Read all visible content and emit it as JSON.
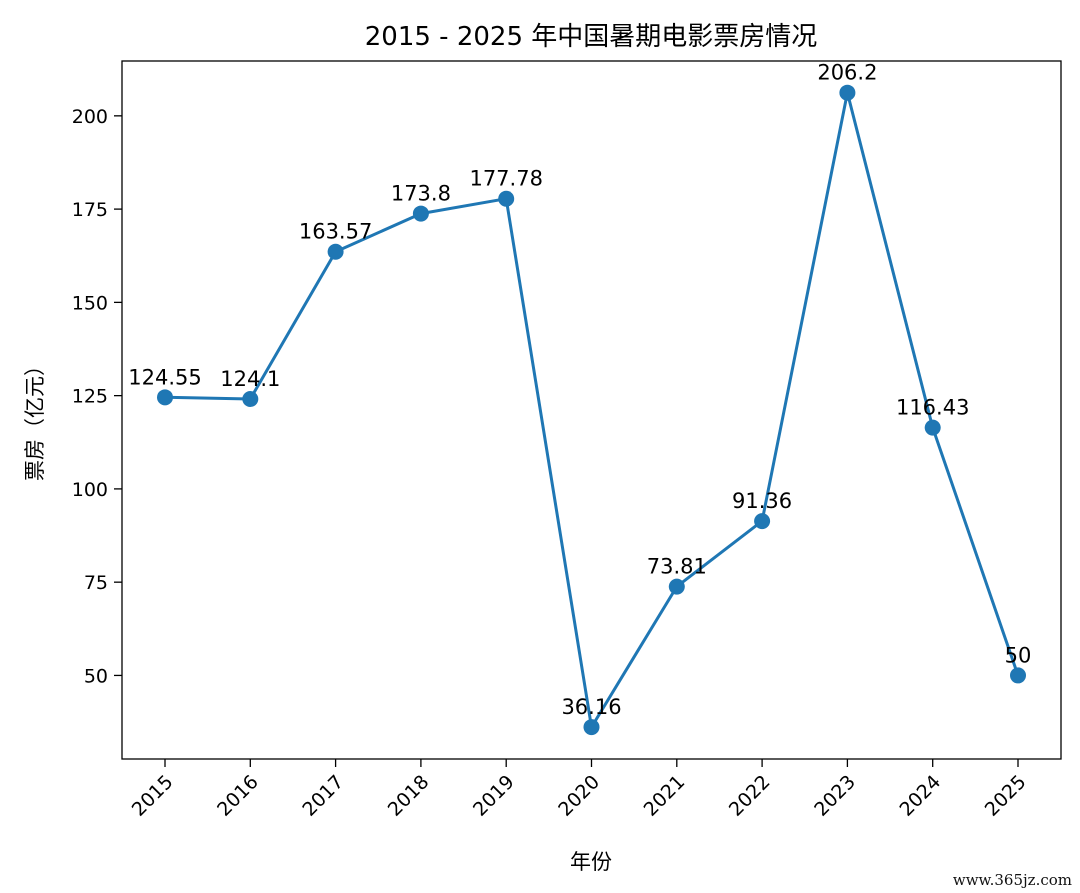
{
  "chart_data": {
    "type": "line",
    "title": "2015 - 2025 年中国暑期电影票房情况",
    "xlabel": "年份",
    "ylabel": "票房（亿元）",
    "x": [
      "2015",
      "2016",
      "2017",
      "2018",
      "2019",
      "2020",
      "2021",
      "2022",
      "2023",
      "2024",
      "2025"
    ],
    "values": [
      124.55,
      124.1,
      163.57,
      173.8,
      177.78,
      36.16,
      73.81,
      91.36,
      206.2,
      116.43,
      50
    ],
    "data_labels": [
      "124.55",
      "124.1",
      "163.57",
      "173.8",
      "177.78",
      "36.16",
      "73.81",
      "91.36",
      "206.2",
      "116.43",
      "50"
    ],
    "yticks": [
      50,
      75,
      100,
      125,
      150,
      175,
      200
    ],
    "ylim": [
      27.6,
      214.7
    ],
    "grid": false,
    "line_color": "#1f77b4"
  },
  "watermark": "www.365jz.com"
}
